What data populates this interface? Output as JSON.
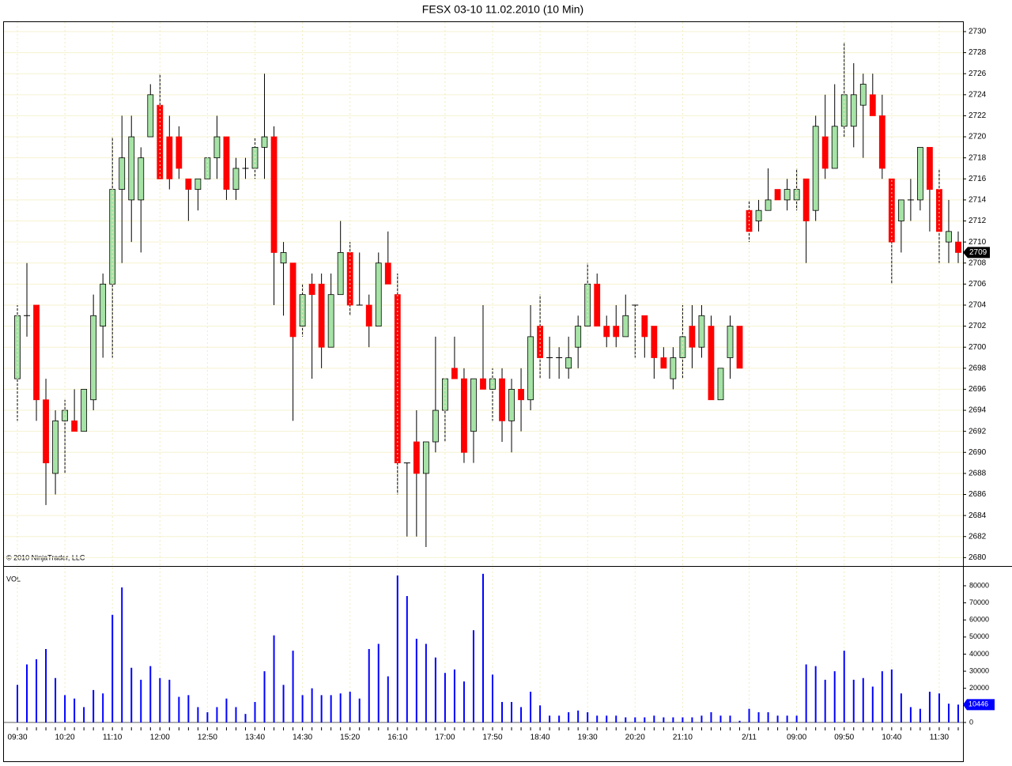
{
  "chart_data": [
    {
      "type": "candlestick",
      "title": "FESX 03-10  11.02.2010 (10 Min)",
      "annotation": "© 2010 NinjaTrader, LLC",
      "up_color": "#a6e3a6",
      "down_color": "#ff0000",
      "ylim": [
        2679.2,
        2730.9
      ],
      "yticks": [
        2680,
        2682,
        2684,
        2686,
        2688,
        2690,
        2692,
        2694,
        2696,
        2698,
        2700,
        2702,
        2704,
        2706,
        2708,
        2710,
        2712,
        2714,
        2716,
        2718,
        2720,
        2722,
        2724,
        2726,
        2728,
        2730
      ],
      "grid": true,
      "last_close": 2709,
      "open": [
        2697,
        2703,
        2704,
        2695,
        2688,
        2693,
        2693,
        2692,
        2695,
        2702,
        2706,
        2715,
        2714,
        2714,
        2720,
        2723,
        2720,
        2720,
        2716,
        2715,
        2716,
        2718,
        2720,
        2715,
        2717,
        2717,
        2719,
        2720,
        2708,
        2708,
        2702,
        2706,
        2706,
        2700,
        2705,
        2709,
        2704,
        2704,
        2702,
        2708,
        2705,
        2689,
        2691,
        2688,
        2691,
        2694,
        2698,
        2697,
        2692,
        2697,
        2696,
        2697,
        2693,
        2696,
        2695,
        2702,
        2699,
        2699,
        2698,
        2700,
        2702,
        2706,
        2702,
        2702,
        2701,
        2704,
        2703,
        2702,
        2699,
        2697,
        2699,
        2702,
        2700,
        2702,
        2695,
        2699,
        2702,
        2713,
        2712,
        2713,
        2715,
        2714,
        2714,
        2716,
        2713,
        2720,
        2717,
        2721,
        2721,
        2723,
        2724,
        2722,
        2716,
        2712,
        2714,
        2714,
        2719,
        2715,
        2710,
        2710
      ],
      "high": [
        2704,
        2708,
        2704,
        2697,
        2694,
        2695,
        2696,
        2696,
        2705,
        2707,
        2720,
        2722,
        2722,
        2719,
        2725,
        2726,
        2722,
        2721,
        2716,
        2716,
        2718,
        2722,
        2720,
        2718,
        2718,
        2720,
        2726,
        2721,
        2710,
        2708,
        2706,
        2707,
        2707,
        2707,
        2712,
        2710,
        2709,
        2705,
        2709,
        2711,
        2707,
        2689,
        2694,
        2691,
        2701,
        2697,
        2701,
        2698,
        2697,
        2704,
        2698,
        2698,
        2697,
        2698,
        2704,
        2705,
        2701,
        2700,
        2701,
        2703,
        2708,
        2707,
        2703,
        2704,
        2705,
        2704,
        2703,
        2702,
        2700,
        2700,
        2704,
        2704,
        2704,
        2703,
        2698,
        2703,
        2702,
        2714,
        2714,
        2717,
        2715,
        2716,
        2717,
        2716,
        2722,
        2724,
        2725,
        2729,
        2727,
        2726,
        2726,
        2724,
        2716,
        2714,
        2716,
        2719,
        2719,
        2717,
        2714,
        2711
      ],
      "low": [
        2693,
        2701,
        2693,
        2685,
        2686,
        2688,
        2692,
        2692,
        2694,
        2699,
        2699,
        2708,
        2710,
        2709,
        2720,
        2716,
        2715,
        2716,
        2712,
        2713,
        2716,
        2716,
        2714,
        2714,
        2716,
        2716,
        2716,
        2704,
        2703,
        2693,
        2701,
        2697,
        2698,
        2700,
        2705,
        2703,
        2704,
        2700,
        2702,
        2706,
        2686,
        2682,
        2682,
        2681,
        2690,
        2691,
        2697,
        2689,
        2689,
        2696,
        2693,
        2691,
        2690,
        2692,
        2694,
        2697,
        2697,
        2697,
        2697,
        2698,
        2702,
        2702,
        2700,
        2700,
        2701,
        2699,
        2699,
        2697,
        2698,
        2696,
        2697,
        2698,
        2699,
        2695,
        2695,
        2697,
        2698,
        2710,
        2711,
        2713,
        2714,
        2713,
        2713,
        2708,
        2712,
        2716,
        2717,
        2720,
        2719,
        2718,
        2722,
        2716,
        2706,
        2709,
        2712,
        2713,
        2711,
        2708,
        2708,
        2708
      ],
      "close": [
        2703,
        2703,
        2695,
        2689,
        2693,
        2694,
        2692,
        2696,
        2703,
        2706,
        2715,
        2718,
        2720,
        2718,
        2724,
        2716,
        2716,
        2717,
        2715,
        2716,
        2718,
        2720,
        2715,
        2717,
        2717,
        2719,
        2720,
        2709,
        2709,
        2701,
        2705,
        2705,
        2700,
        2705,
        2709,
        2704,
        2704,
        2702,
        2708,
        2706,
        2689,
        2689,
        2688,
        2691,
        2694,
        2697,
        2697,
        2690,
        2697,
        2696,
        2697,
        2693,
        2696,
        2695,
        2701,
        2699,
        2699,
        2699,
        2699,
        2702,
        2706,
        2702,
        2701,
        2701,
        2703,
        2704,
        2701,
        2699,
        2698,
        2699,
        2701,
        2700,
        2703,
        2695,
        2698,
        2702,
        2698,
        2711,
        2713,
        2714,
        2714,
        2715,
        2715,
        2712,
        2721,
        2717,
        2721,
        2724,
        2724,
        2725,
        2722,
        2717,
        2710,
        2714,
        2714,
        2719,
        2715,
        2711,
        2711,
        2709
      ]
    },
    {
      "type": "bar",
      "title": "VOL",
      "color": "#0000ff",
      "ylim": [
        -2800,
        91100
      ],
      "yticks": [
        0,
        10000,
        20000,
        30000,
        40000,
        50000,
        60000,
        70000,
        80000
      ],
      "last_volume": 10446,
      "categories": [
        "09:30",
        null,
        null,
        null,
        null,
        "10:20",
        null,
        null,
        null,
        null,
        "11:10",
        null,
        null,
        null,
        null,
        "12:00",
        null,
        null,
        null,
        null,
        "12:50",
        null,
        null,
        null,
        null,
        "13:40",
        null,
        null,
        null,
        null,
        "14:30",
        null,
        null,
        null,
        null,
        "15:20",
        null,
        null,
        null,
        null,
        "16:10",
        null,
        null,
        null,
        null,
        "17:00",
        null,
        null,
        null,
        null,
        "17:50",
        null,
        null,
        null,
        null,
        "18:40",
        null,
        null,
        null,
        null,
        "19:30",
        null,
        null,
        null,
        null,
        "20:20",
        null,
        null,
        null,
        null,
        "21:10",
        null,
        null,
        null,
        null,
        null,
        null,
        "2/11",
        null,
        null,
        null,
        null,
        "09:00",
        null,
        null,
        null,
        null,
        "09:50",
        null,
        null,
        null,
        null,
        "10:40",
        null,
        null,
        null,
        null,
        "11:30",
        null,
        null
      ],
      "values": [
        22000,
        34000,
        37000,
        43000,
        26000,
        16000,
        14000,
        9000,
        19000,
        17000,
        63000,
        79000,
        32000,
        25000,
        33000,
        26000,
        25000,
        15000,
        16000,
        9000,
        6000,
        9000,
        14000,
        9000,
        5000,
        12000,
        30000,
        51000,
        22000,
        42000,
        16000,
        20000,
        16000,
        16000,
        17000,
        18000,
        14000,
        43000,
        46000,
        27000,
        86000,
        74000,
        49000,
        46000,
        38000,
        29000,
        31000,
        24000,
        54000,
        87000,
        28000,
        12000,
        12000,
        9000,
        18000,
        10000,
        4000,
        4000,
        6000,
        7000,
        6000,
        4000,
        4000,
        4000,
        3000,
        3000,
        3000,
        4000,
        3000,
        3000,
        3000,
        3000,
        4000,
        6000,
        4000,
        4000,
        1000,
        8000,
        6000,
        6000,
        4000,
        4000,
        4000,
        34000,
        33000,
        25000,
        30000,
        42000,
        25000,
        26000,
        21000,
        30000,
        31000,
        17000,
        9000,
        8000,
        18000,
        17000,
        11000,
        10446
      ]
    }
  ]
}
